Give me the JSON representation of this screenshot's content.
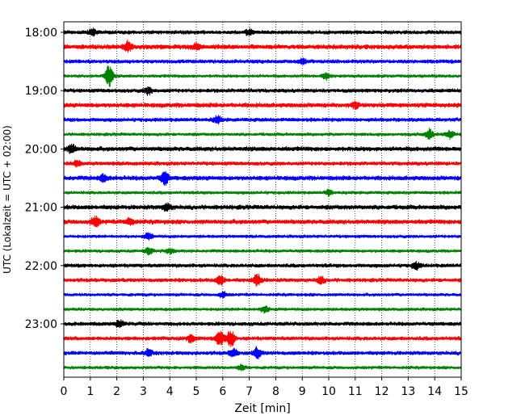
{
  "chart_data": {
    "type": "line",
    "title": "",
    "xlabel": "Zeit  [min]",
    "ylabel": "UTC (Lokalzeit = UTC + 02:00)",
    "xlim": [
      0,
      15
    ],
    "x_ticks": [
      "0",
      "1",
      "2",
      "3",
      "4",
      "5",
      "6",
      "7",
      "8",
      "9",
      "10",
      "11",
      "12",
      "13",
      "14",
      "15"
    ],
    "y_tick_labels": [
      "18:00",
      "19:00",
      "20:00",
      "21:00",
      "22:00",
      "23:00"
    ],
    "grid": "vertical dotted lines at each minute",
    "legend": "none",
    "trace_interval_minutes": 15,
    "start_time": "18:00",
    "colors": [
      "#000000",
      "#ff0000",
      "#0000ff",
      "#008000"
    ],
    "series": [
      {
        "start": "18:00",
        "color": "#000000",
        "amplitude": 3.0,
        "events": [
          [
            1.1,
            4
          ],
          [
            7.0,
            3
          ]
        ]
      },
      {
        "start": "18:15",
        "color": "#ff0000",
        "amplitude": 3.5,
        "events": [
          [
            2.4,
            6
          ],
          [
            5.0,
            3
          ]
        ]
      },
      {
        "start": "18:30",
        "color": "#0000ff",
        "amplitude": 3.0,
        "events": [
          [
            9.0,
            3
          ]
        ]
      },
      {
        "start": "18:45",
        "color": "#008000",
        "amplitude": 2.5,
        "events": [
          [
            1.7,
            13
          ],
          [
            9.9,
            4
          ]
        ]
      },
      {
        "start": "19:00",
        "color": "#000000",
        "amplitude": 3.0,
        "events": [
          [
            3.2,
            4
          ]
        ]
      },
      {
        "start": "19:15",
        "color": "#ff0000",
        "amplitude": 3.5,
        "events": [
          [
            11.0,
            3
          ]
        ]
      },
      {
        "start": "19:30",
        "color": "#0000ff",
        "amplitude": 3.0,
        "events": [
          [
            5.8,
            4
          ]
        ]
      },
      {
        "start": "19:45",
        "color": "#008000",
        "amplitude": 2.5,
        "events": [
          [
            13.8,
            6
          ],
          [
            14.6,
            5
          ]
        ]
      },
      {
        "start": "20:00",
        "color": "#000000",
        "amplitude": 3.5,
        "events": [
          [
            0.3,
            5
          ]
        ]
      },
      {
        "start": "20:15",
        "color": "#ff0000",
        "amplitude": 3.0,
        "events": [
          [
            0.5,
            3
          ]
        ]
      },
      {
        "start": "20:30",
        "color": "#0000ff",
        "amplitude": 3.5,
        "events": [
          [
            3.8,
            8
          ],
          [
            1.5,
            4
          ]
        ]
      },
      {
        "start": "20:45",
        "color": "#008000",
        "amplitude": 2.5,
        "events": [
          [
            10.0,
            3
          ]
        ]
      },
      {
        "start": "21:00",
        "color": "#000000",
        "amplitude": 3.5,
        "events": [
          [
            3.9,
            4
          ]
        ]
      },
      {
        "start": "21:15",
        "color": "#ff0000",
        "amplitude": 3.5,
        "events": [
          [
            1.2,
            6
          ],
          [
            2.5,
            4
          ]
        ]
      },
      {
        "start": "21:30",
        "color": "#0000ff",
        "amplitude": 2.5,
        "events": [
          [
            3.2,
            4
          ]
        ]
      },
      {
        "start": "21:45",
        "color": "#008000",
        "amplitude": 2.5,
        "events": [
          [
            3.2,
            4
          ],
          [
            4.0,
            3
          ]
        ]
      },
      {
        "start": "22:00",
        "color": "#000000",
        "amplitude": 3.0,
        "events": [
          [
            13.3,
            4
          ]
        ]
      },
      {
        "start": "22:15",
        "color": "#ff0000",
        "amplitude": 3.0,
        "events": [
          [
            5.9,
            6
          ],
          [
            7.3,
            7
          ],
          [
            9.7,
            4
          ]
        ]
      },
      {
        "start": "22:30",
        "color": "#0000ff",
        "amplitude": 2.5,
        "events": [
          [
            6.0,
            3
          ]
        ]
      },
      {
        "start": "22:45",
        "color": "#008000",
        "amplitude": 2.5,
        "events": [
          [
            7.6,
            4
          ]
        ]
      },
      {
        "start": "23:00",
        "color": "#000000",
        "amplitude": 3.0,
        "events": [
          [
            2.1,
            4
          ]
        ]
      },
      {
        "start": "23:15",
        "color": "#ff0000",
        "amplitude": 3.0,
        "events": [
          [
            5.9,
            9
          ],
          [
            6.3,
            11
          ],
          [
            4.8,
            5
          ]
        ]
      },
      {
        "start": "23:30",
        "color": "#0000ff",
        "amplitude": 3.0,
        "events": [
          [
            6.4,
            5
          ],
          [
            7.3,
            6
          ],
          [
            3.2,
            4
          ]
        ]
      },
      {
        "start": "23:45",
        "color": "#008000",
        "amplitude": 2.5,
        "events": [
          [
            6.7,
            3
          ]
        ]
      }
    ]
  }
}
